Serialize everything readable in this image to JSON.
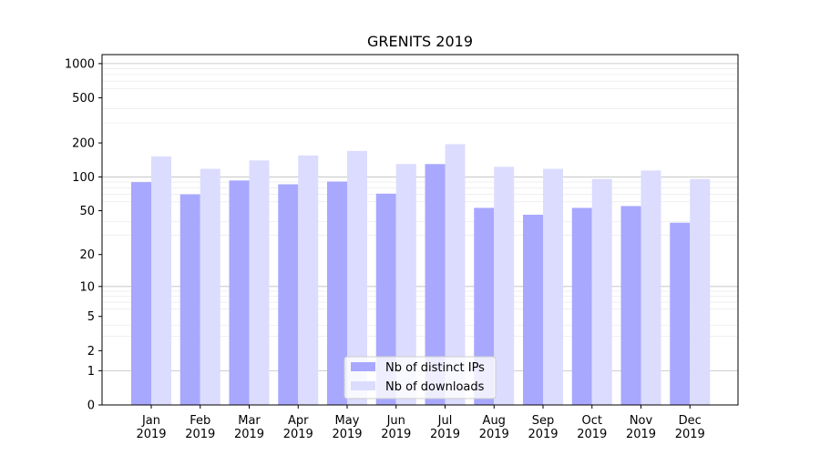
{
  "chart_data": {
    "type": "bar",
    "title": "GRENITS 2019",
    "xlabel": "",
    "ylabel": "",
    "y_scale": "log(1+y)",
    "ylim": [
      0,
      1200
    ],
    "y_ticks": [
      0,
      1,
      2,
      5,
      10,
      20,
      50,
      100,
      200,
      500,
      1000
    ],
    "y_tick_labels": [
      "0",
      "1",
      "2",
      "5",
      "10",
      "20",
      "50",
      "100",
      "200",
      "500",
      "1000"
    ],
    "grid": true,
    "legend_position": "bottom-center",
    "categories": [
      "Jan\n2019",
      "Feb\n2019",
      "Mar\n2019",
      "Apr\n2019",
      "May\n2019",
      "Jun\n2019",
      "Jul\n2019",
      "Aug\n2019",
      "Sep\n2019",
      "Oct\n2019",
      "Nov\n2019",
      "Dec\n2019"
    ],
    "series": [
      {
        "name": "Nb of distinct IPs",
        "color": "#a8a8ff",
        "values": [
          90,
          70,
          93,
          86,
          91,
          71,
          130,
          53,
          46,
          53,
          55,
          39
        ]
      },
      {
        "name": "Nb of downloads",
        "color": "#dcdcff",
        "values": [
          152,
          118,
          140,
          155,
          170,
          130,
          195,
          123,
          118,
          96,
          114,
          96
        ]
      }
    ]
  }
}
